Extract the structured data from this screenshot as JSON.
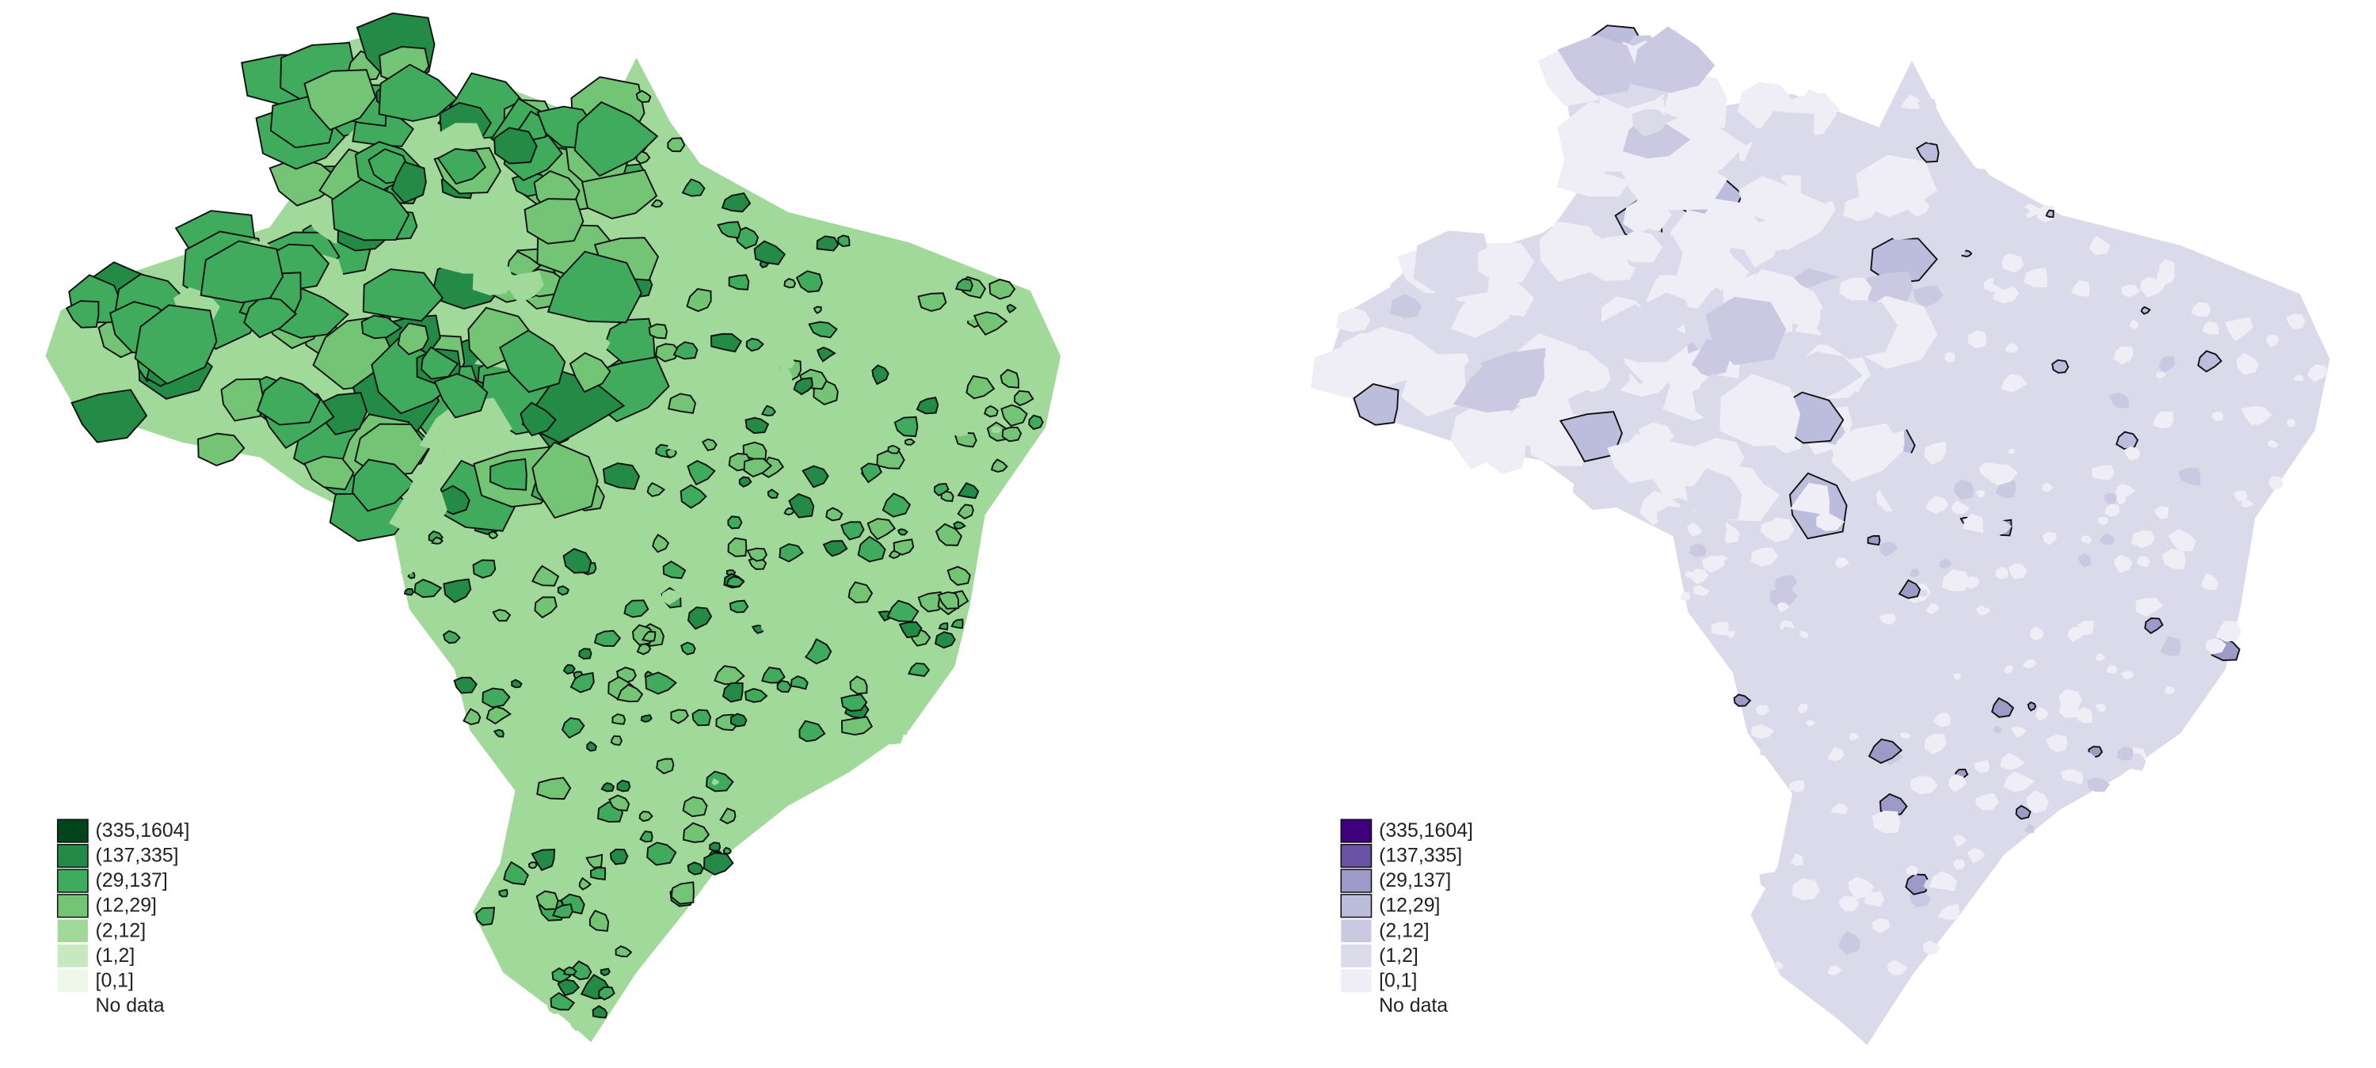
{
  "maps": [
    {
      "legend": [
        {
          "label": "(335,1604]",
          "color": "#00441b"
        },
        {
          "label": "(137,335]",
          "color": "#238b45"
        },
        {
          "label": "(29,137]",
          "color": "#41ab5d"
        },
        {
          "label": "(12,29]",
          "color": "#74c476"
        },
        {
          "label": "(2,12]",
          "color": "#a1d99b"
        },
        {
          "label": "(1,2]",
          "color": "#c7e9c0"
        },
        {
          "label": "[0,1]",
          "color": "#edf8e9"
        }
      ],
      "no_data": "No data"
    },
    {
      "legend": [
        {
          "label": "(335,1604]",
          "color": "#3f007d"
        },
        {
          "label": "(137,335]",
          "color": "#6a51a3"
        },
        {
          "label": "(29,137]",
          "color": "#9e9ac8"
        },
        {
          "label": "(12,29]",
          "color": "#bcbddc"
        },
        {
          "label": "(2,12]",
          "color": "#cbc9e2"
        },
        {
          "label": "(1,2]",
          "color": "#dadaeb"
        },
        {
          "label": "[0,1]",
          "color": "#efedf5"
        }
      ],
      "no_data": "No data"
    }
  ]
}
